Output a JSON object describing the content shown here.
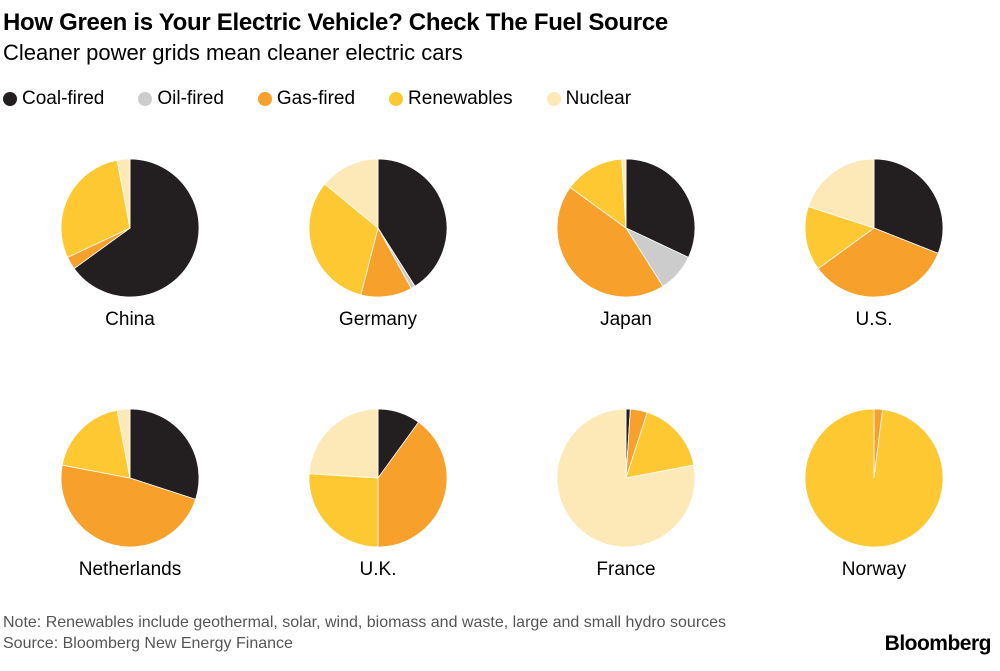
{
  "title": "How Green is Your Electric Vehicle? Check The Fuel Source",
  "subtitle": "Cleaner power grids mean cleaner electric cars",
  "legend": [
    {
      "label": "Coal-fired",
      "color": "#231f20"
    },
    {
      "label": "Oil-fired",
      "color": "#cccccc"
    },
    {
      "label": "Gas-fired",
      "color": "#f7a12c"
    },
    {
      "label": "Renewables",
      "color": "#fdc831"
    },
    {
      "label": "Nuclear",
      "color": "#fde9b8"
    }
  ],
  "note": "Note: Renewables include geothermal, solar, wind, biomass and waste, large and small hydro sources",
  "source": "Source: Bloomberg New Energy Finance",
  "brand": "Bloomberg",
  "chart_data": {
    "type": "pie",
    "series_names": [
      "Coal-fired",
      "Oil-fired",
      "Gas-fired",
      "Renewables",
      "Nuclear"
    ],
    "colors": [
      "#231f20",
      "#cccccc",
      "#f7a12c",
      "#fdc831",
      "#fde9b8"
    ],
    "unit": "percent",
    "pies": [
      {
        "label": "China",
        "values": [
          65,
          0,
          3,
          29,
          3
        ]
      },
      {
        "label": "Germany",
        "values": [
          41,
          1,
          12,
          32,
          14
        ]
      },
      {
        "label": "Japan",
        "values": [
          32,
          9,
          44,
          14,
          1
        ]
      },
      {
        "label": "U.S.",
        "values": [
          31,
          0,
          34,
          15,
          20
        ]
      },
      {
        "label": "Netherlands",
        "values": [
          30,
          0,
          48,
          19,
          3
        ]
      },
      {
        "label": "U.K.",
        "values": [
          10,
          0,
          40,
          26,
          24
        ]
      },
      {
        "label": "France",
        "values": [
          1,
          0,
          4,
          17,
          78
        ]
      },
      {
        "label": "Norway",
        "values": [
          0,
          0,
          2,
          98,
          0
        ]
      }
    ]
  }
}
